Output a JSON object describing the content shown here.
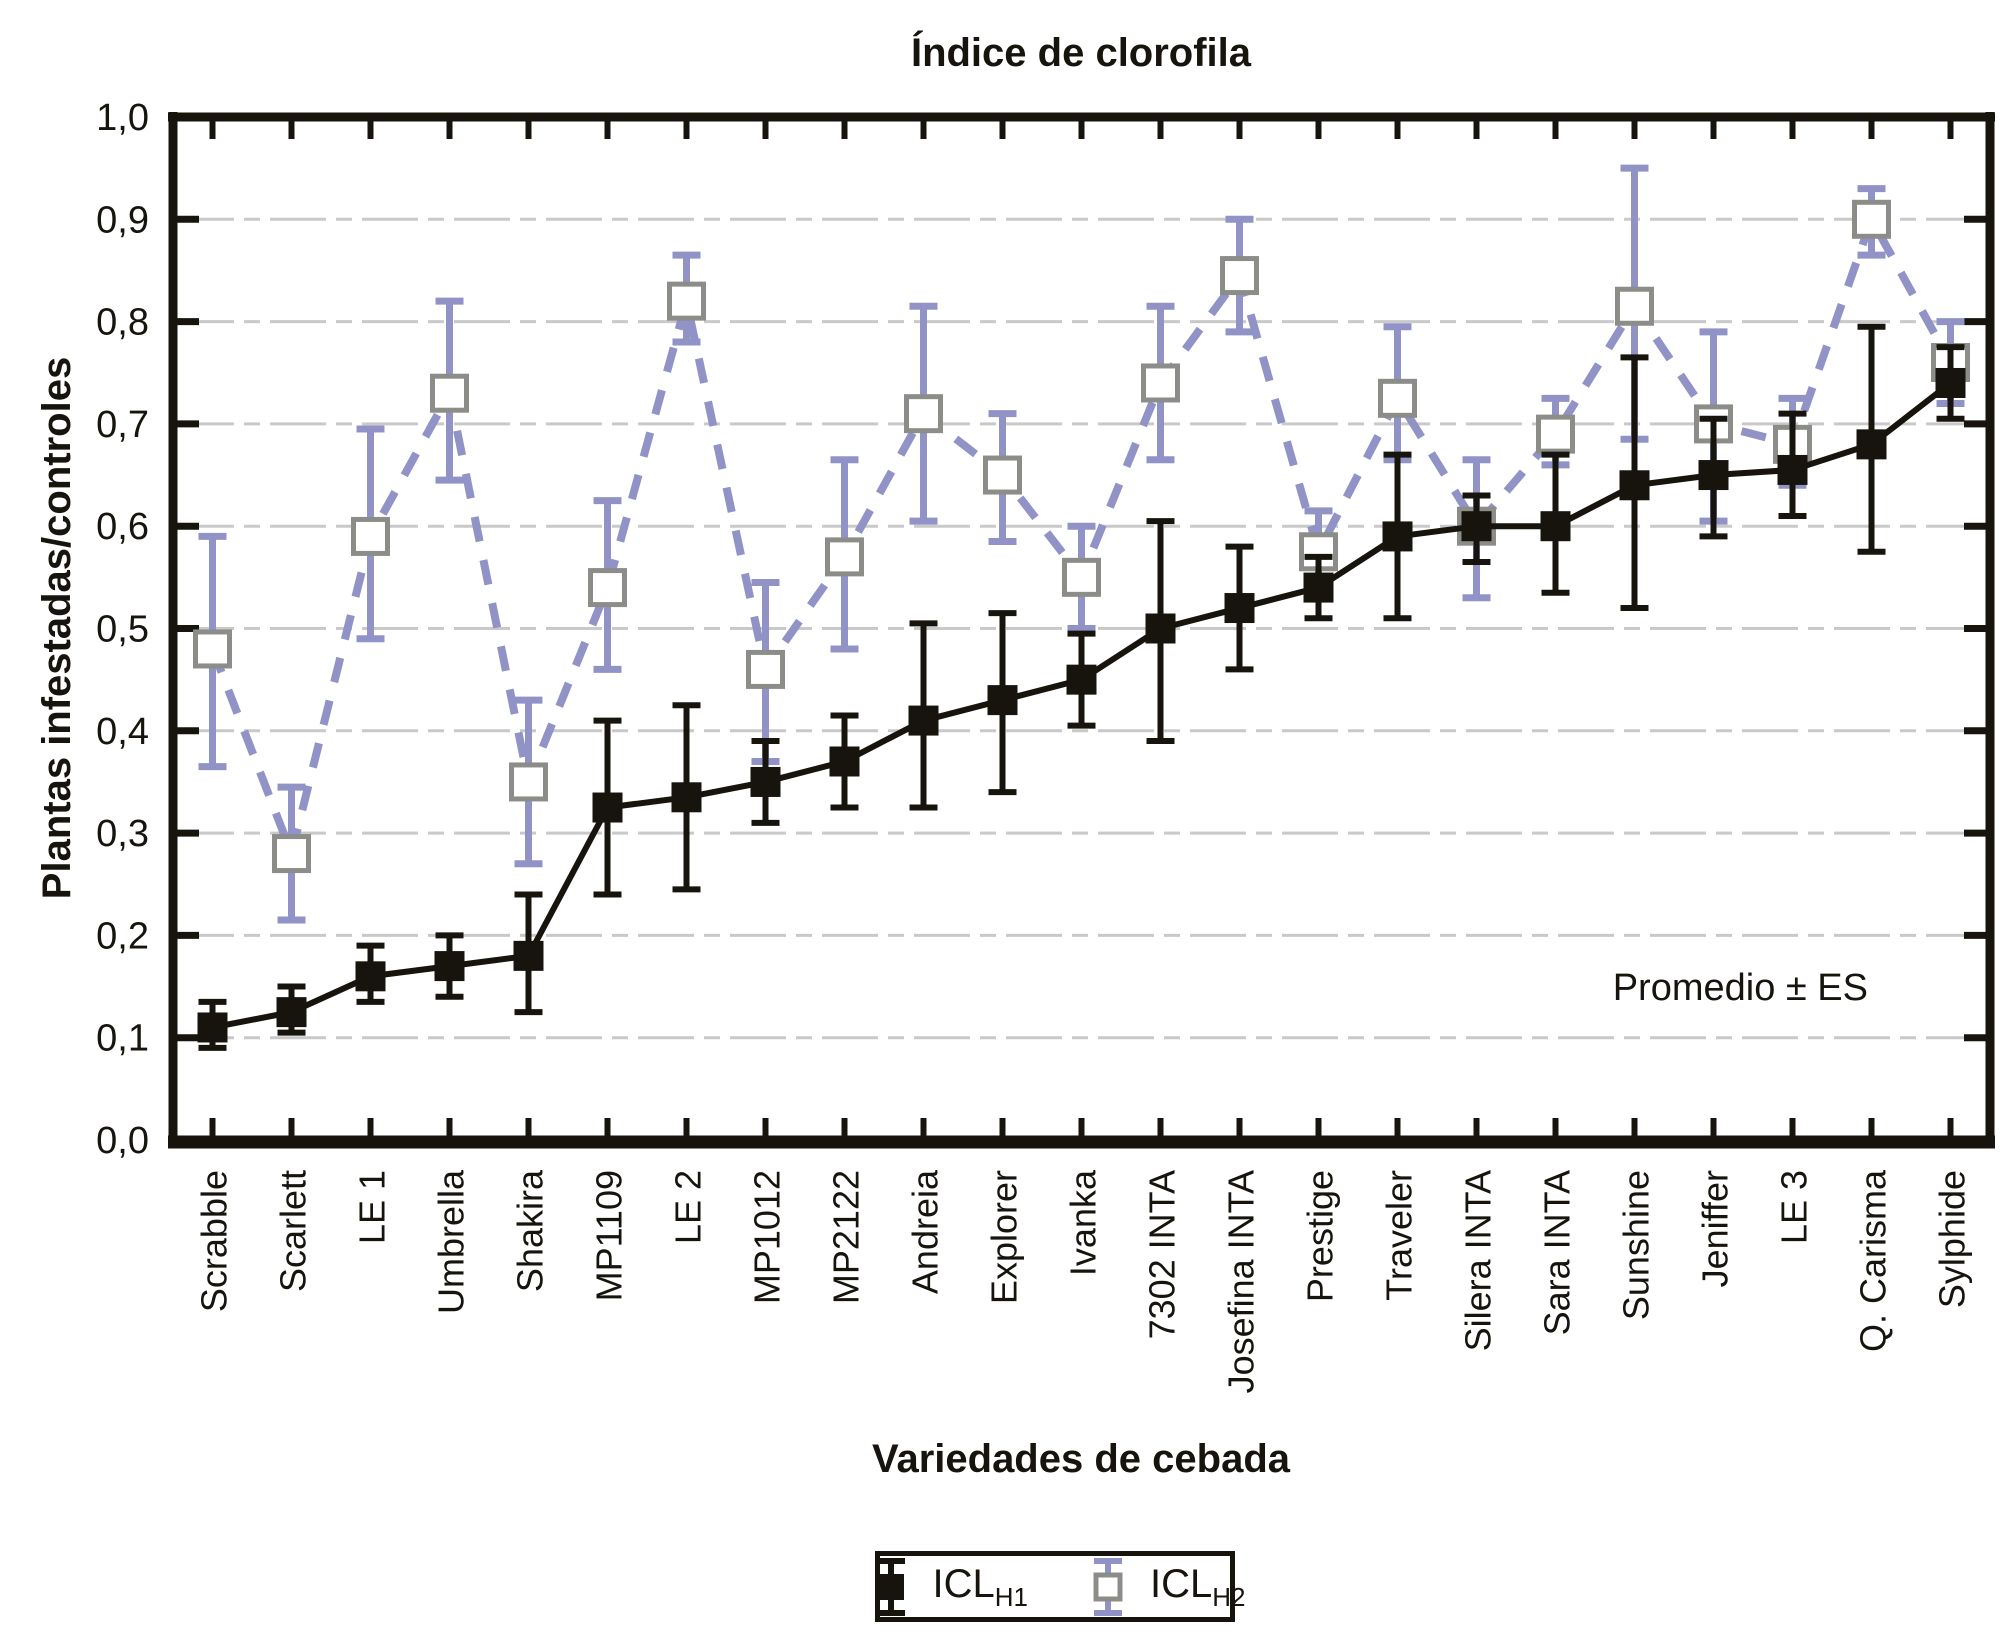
{
  "title": "Índice de clorofila",
  "axes": {
    "y_label": "Plantas infestadas/controles",
    "x_label": "Variedades de cebada",
    "y_ticks": [
      "1,0",
      "0,9",
      "0,8",
      "0,7",
      "0,6",
      "0,5",
      "0,4",
      "0,3",
      "0,2",
      "0,1",
      "0,0"
    ]
  },
  "annotation": "Promedio ± ES",
  "legend": [
    {
      "label": "ICL",
      "sub": "H1"
    },
    {
      "label": "ICL",
      "sub": "H2"
    }
  ],
  "colors": {
    "h1": "#17140e",
    "h2": "#9193c6",
    "h2_marker_border": "#8c8c88",
    "h2_marker_fill": "#ffffff",
    "grid": "#c9c9c9",
    "axis": "#17140e",
    "background": "#ffffff"
  },
  "chart_data": {
    "type": "line",
    "title": "Índice de clorofila",
    "xlabel": "Variedades de cebada",
    "ylabel": "Plantas infestadas/controles",
    "ylim": [
      0.0,
      1.0
    ],
    "grid": "horizontal-dashed",
    "legend_position": "bottom-center",
    "annotation": "Promedio ± ES",
    "categories": [
      "Scrabble",
      "Scarlett",
      "LE 1",
      "Umbrella",
      "Shakira",
      "MP1109",
      "LE 2",
      "MP1012",
      "MP2122",
      "Andreia",
      "Explorer",
      "Ivanka",
      "7302 INTA",
      "Josefina INTA",
      "Prestige",
      "Traveler",
      "Silera INTA",
      "Sara INTA",
      "Sunshine",
      "Jeniffer",
      "LE 3",
      "Q. Carisma",
      "Sylphide"
    ],
    "series": [
      {
        "name": "ICL_H1",
        "label": "ICL",
        "label_sub": "H1",
        "marker": "filled-square",
        "line": "solid",
        "color": "#17140e",
        "values": [
          0.11,
          0.125,
          0.16,
          0.17,
          0.18,
          0.325,
          0.335,
          0.35,
          0.37,
          0.41,
          0.43,
          0.45,
          0.5,
          0.52,
          0.54,
          0.59,
          0.6,
          0.6,
          0.64,
          0.65,
          0.655,
          0.68,
          0.74
        ],
        "error_low": [
          0.09,
          0.105,
          0.135,
          0.14,
          0.125,
          0.24,
          0.245,
          0.31,
          0.325,
          0.325,
          0.34,
          0.405,
          0.39,
          0.46,
          0.51,
          0.51,
          0.565,
          0.535,
          0.52,
          0.59,
          0.61,
          0.575,
          0.705
        ],
        "error_high": [
          0.135,
          0.15,
          0.19,
          0.2,
          0.24,
          0.41,
          0.425,
          0.39,
          0.415,
          0.505,
          0.515,
          0.495,
          0.605,
          0.58,
          0.57,
          0.67,
          0.63,
          0.67,
          0.765,
          0.705,
          0.71,
          0.795,
          0.775
        ]
      },
      {
        "name": "ICL_H2",
        "label": "ICL",
        "label_sub": "H2",
        "marker": "open-square",
        "line": "dashed",
        "color": "#9193c6",
        "marker_border": "#8c8c88",
        "marker_fill": "#ffffff",
        "values": [
          0.48,
          0.28,
          0.59,
          0.73,
          0.35,
          0.54,
          0.82,
          0.46,
          0.57,
          0.71,
          0.65,
          0.55,
          0.74,
          0.845,
          0.575,
          0.725,
          0.6,
          0.69,
          0.815,
          0.7,
          0.68,
          0.9,
          0.76
        ],
        "error_low": [
          0.365,
          0.215,
          0.49,
          0.645,
          0.27,
          0.46,
          0.78,
          0.37,
          0.48,
          0.605,
          0.585,
          0.5,
          0.665,
          0.79,
          0.535,
          0.665,
          0.53,
          0.66,
          0.685,
          0.605,
          0.64,
          0.865,
          0.72
        ],
        "error_high": [
          0.59,
          0.345,
          0.695,
          0.82,
          0.43,
          0.625,
          0.865,
          0.545,
          0.665,
          0.815,
          0.71,
          0.6,
          0.815,
          0.9,
          0.615,
          0.795,
          0.665,
          0.725,
          0.95,
          0.79,
          0.725,
          0.93,
          0.8
        ]
      }
    ]
  }
}
